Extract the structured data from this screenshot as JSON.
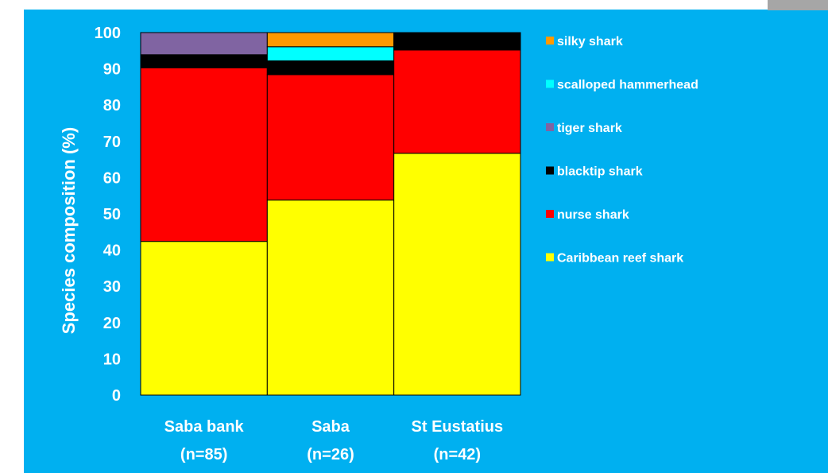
{
  "chart_data": {
    "type": "bar",
    "stacked": true,
    "title": "",
    "xlabel": "",
    "ylabel": "Species composition (%)",
    "ylim": [
      0,
      100
    ],
    "yticks": [
      0,
      10,
      20,
      30,
      40,
      50,
      60,
      70,
      80,
      90,
      100
    ],
    "grid": false,
    "legend_position": "right",
    "categories": [
      {
        "name": "Saba bank",
        "n": "(n=85)"
      },
      {
        "name": "Saba",
        "n": "(n=26)"
      },
      {
        "name": "St Eustatius",
        "n": "(n=42)"
      }
    ],
    "series": [
      {
        "name": "Caribbean reef shark",
        "color": "#ffff00",
        "values": [
          42.4,
          53.8,
          66.7
        ]
      },
      {
        "name": "nurse shark",
        "color": "#ff0000",
        "values": [
          47.9,
          34.6,
          28.5
        ]
      },
      {
        "name": "blacktip shark",
        "color": "#000000",
        "values": [
          3.6,
          3.8,
          4.8
        ]
      },
      {
        "name": "tiger shark",
        "color": "#8064a2",
        "values": [
          6.1,
          0,
          0
        ]
      },
      {
        "name": "scalloped hammerhead",
        "color": "#00ffff",
        "values": [
          0,
          3.9,
          0
        ]
      },
      {
        "name": "silky shark",
        "color": "#ff9900",
        "values": [
          0,
          3.9,
          0
        ]
      }
    ],
    "legend_order": [
      "silky shark",
      "scalloped hammerhead",
      "tiger shark",
      "blacktip shark",
      "nurse shark",
      "Caribbean reef shark"
    ],
    "background_color": "#00b0f0",
    "text_color": "#ffffff"
  }
}
